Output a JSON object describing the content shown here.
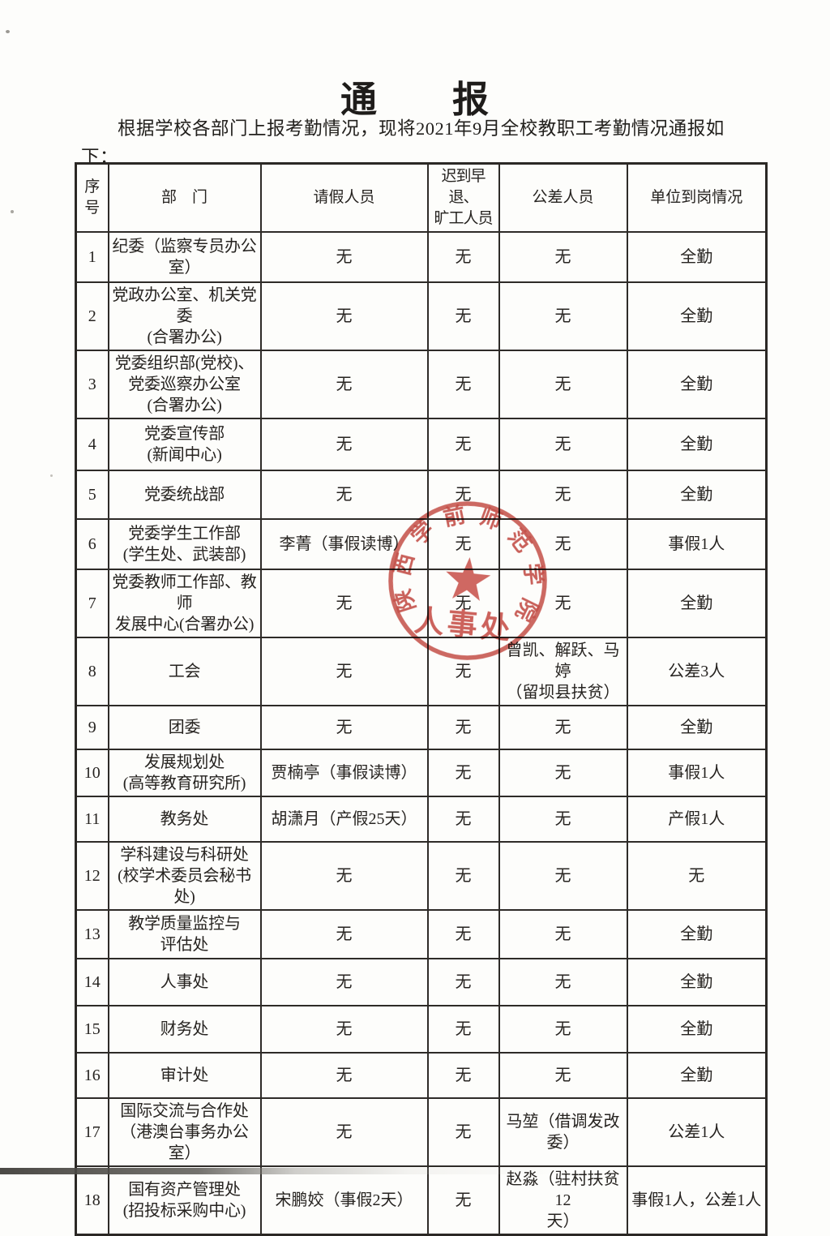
{
  "document": {
    "title": "通　　报",
    "intro": "根据学校各部门上报考勤情况，现将2021年9月全校教职工考勤情况通报如下："
  },
  "table": {
    "headers": {
      "no": "序号",
      "dept": "部　门",
      "leave": "请假人员",
      "late": "迟到早退、\n旷工人员",
      "trip": "公差人员",
      "status": "单位到岗情况"
    },
    "rows": [
      {
        "no": "1",
        "dept": "纪委（监察专员办公\n室）",
        "leave": "无",
        "late": "无",
        "trip": "无",
        "status": "全勤"
      },
      {
        "no": "2",
        "dept": "党政办公室、机关党委\n(合署办公)",
        "leave": "无",
        "late": "无",
        "trip": "无",
        "status": "全勤"
      },
      {
        "no": "3",
        "dept": "党委组织部(党校)、\n党委巡察办公室\n(合署办公)",
        "leave": "无",
        "late": "无",
        "trip": "无",
        "status": "全勤"
      },
      {
        "no": "4",
        "dept": "党委宣传部\n(新闻中心)",
        "leave": "无",
        "late": "无",
        "trip": "无",
        "status": "全勤"
      },
      {
        "no": "5",
        "dept": "党委统战部",
        "leave": "无",
        "late": "无",
        "trip": "无",
        "status": "全勤"
      },
      {
        "no": "6",
        "dept": "党委学生工作部\n(学生处、武装部)",
        "leave": "李菁（事假读博）",
        "late": "无",
        "trip": "无",
        "status": "事假1人"
      },
      {
        "no": "7",
        "dept": "党委教师工作部、教师\n发展中心(合署办公)",
        "leave": "无",
        "late": "无",
        "trip": "无",
        "status": "全勤"
      },
      {
        "no": "8",
        "dept": "工会",
        "leave": "无",
        "late": "无",
        "trip": "曾凯、解跃、马婷\n（留坝县扶贫）",
        "status": "公差3人"
      },
      {
        "no": "9",
        "dept": "团委",
        "leave": "无",
        "late": "无",
        "trip": "无",
        "status": "全勤"
      },
      {
        "no": "10",
        "dept": "发展规划处\n(高等教育研究所)",
        "leave": "贾楠亭（事假读博）",
        "late": "无",
        "trip": "无",
        "status": "事假1人"
      },
      {
        "no": "11",
        "dept": "教务处",
        "leave": "胡潇月（产假25天）",
        "late": "无",
        "trip": "无",
        "status": "产假1人"
      },
      {
        "no": "12",
        "dept": "学科建设与科研处\n(校学术委员会秘书处)",
        "leave": "无",
        "late": "无",
        "trip": "无",
        "status": "无"
      },
      {
        "no": "13",
        "dept": "教学质量监控与\n评估处",
        "leave": "无",
        "late": "无",
        "trip": "无",
        "status": "全勤"
      },
      {
        "no": "14",
        "dept": "人事处",
        "leave": "无",
        "late": "无",
        "trip": "无",
        "status": "全勤"
      },
      {
        "no": "15",
        "dept": "财务处",
        "leave": "无",
        "late": "无",
        "trip": "无",
        "status": "全勤"
      },
      {
        "no": "16",
        "dept": "审计处",
        "leave": "无",
        "late": "无",
        "trip": "无",
        "status": "全勤"
      },
      {
        "no": "17",
        "dept": "国际交流与合作处\n（港澳台事务办公室）",
        "leave": "无",
        "late": "无",
        "trip": "马堃（借调发改\n委）",
        "status": "公差1人"
      },
      {
        "no": "18",
        "dept": "国有资产管理处\n(招投标采购中心)",
        "leave": "宋鹏姣（事假2天）",
        "late": "无",
        "trip": "赵淼（驻村扶贫12\n天）",
        "status": "事假1人，公差1人"
      }
    ]
  },
  "seal": {
    "ring_text": "陕西学前师范学院",
    "office_text": "人事处",
    "color": "#c2423a"
  }
}
